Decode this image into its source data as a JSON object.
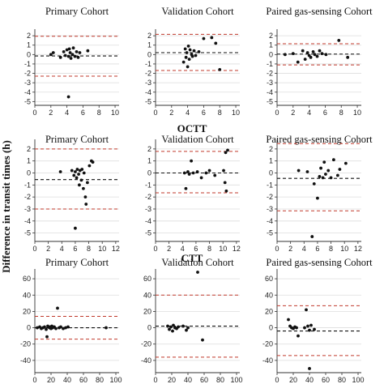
{
  "figure": {
    "ylabel": "Difference in transit times (h)",
    "section_titles": [
      "",
      "OCTT",
      "CTT"
    ]
  },
  "chart_data": [
    {
      "type": "scatter",
      "row": 0,
      "col": 0,
      "title": "Primary Cohort",
      "xlim": [
        0,
        10.5
      ],
      "xticks": [
        0,
        2,
        4,
        6,
        8,
        10
      ],
      "ylim": [
        -5.4,
        2.7
      ],
      "yticks": [
        -5,
        -4,
        -3,
        -2,
        -1,
        0,
        1,
        2
      ],
      "mean": -0.15,
      "loa_upper": 1.95,
      "loa_lower": -2.3,
      "grid": true,
      "points": [
        [
          2.0,
          0.0
        ],
        [
          2.3,
          0.2
        ],
        [
          3.2,
          -0.3
        ],
        [
          3.6,
          0.3
        ],
        [
          3.8,
          -0.1
        ],
        [
          4.0,
          0.5
        ],
        [
          4.2,
          -0.2
        ],
        [
          4.3,
          0.6
        ],
        [
          4.4,
          0.2
        ],
        [
          4.5,
          -0.4
        ],
        [
          4.7,
          0.0
        ],
        [
          4.8,
          0.7
        ],
        [
          5.0,
          -0.2
        ],
        [
          5.2,
          0.3
        ],
        [
          5.4,
          -0.3
        ],
        [
          5.6,
          0.2
        ],
        [
          6.6,
          0.4
        ],
        [
          4.2,
          -4.5
        ]
      ]
    },
    {
      "type": "scatter",
      "row": 0,
      "col": 1,
      "title": "Validation Cohort",
      "xlim": [
        0,
        10.5
      ],
      "xticks": [
        0,
        2,
        4,
        6,
        8,
        10
      ],
      "ylim": [
        -5.4,
        2.7
      ],
      "yticks": [
        -5,
        -4,
        -3,
        -2,
        -1,
        0,
        1,
        2
      ],
      "mean": 0.2,
      "loa_upper": 2.15,
      "loa_lower": -1.7,
      "grid": true,
      "points": [
        [
          3.5,
          -0.8
        ],
        [
          3.7,
          0.6
        ],
        [
          3.8,
          -0.3
        ],
        [
          3.9,
          0.2
        ],
        [
          4.0,
          -1.3
        ],
        [
          4.1,
          0.9
        ],
        [
          4.2,
          -0.5
        ],
        [
          4.3,
          0.5
        ],
        [
          4.5,
          0.0
        ],
        [
          4.6,
          -0.2
        ],
        [
          4.8,
          0.4
        ],
        [
          5.0,
          -0.1
        ],
        [
          5.4,
          0.3
        ],
        [
          6.0,
          1.7
        ],
        [
          7.0,
          1.8
        ],
        [
          7.5,
          1.2
        ],
        [
          8.0,
          -1.6
        ]
      ]
    },
    {
      "type": "scatter",
      "row": 0,
      "col": 2,
      "title": "Paired gas-sensing Cohort",
      "xlim": [
        0,
        10.5
      ],
      "xticks": [
        0,
        2,
        4,
        6,
        8,
        10
      ],
      "ylim": [
        -5.4,
        2.7
      ],
      "yticks": [
        -5,
        -4,
        -3,
        -2,
        -1,
        0,
        1,
        2
      ],
      "mean": 0.05,
      "loa_upper": 1.15,
      "loa_lower": -1.1,
      "grid": true,
      "points": [
        [
          1.0,
          0.0
        ],
        [
          2.0,
          0.1
        ],
        [
          2.6,
          -0.8
        ],
        [
          3.2,
          0.4
        ],
        [
          3.5,
          -0.5
        ],
        [
          3.8,
          0.2
        ],
        [
          4.0,
          -0.1
        ],
        [
          4.2,
          -0.3
        ],
        [
          4.5,
          0.3
        ],
        [
          4.7,
          0.0
        ],
        [
          5.0,
          -0.2
        ],
        [
          5.3,
          0.4
        ],
        [
          5.6,
          0.1
        ],
        [
          6.1,
          0.0
        ],
        [
          7.7,
          1.5
        ],
        [
          8.8,
          -0.3
        ]
      ]
    },
    {
      "type": "scatter",
      "row": 1,
      "col": 0,
      "title": "Primary Cohort",
      "xlim": [
        0,
        12.5
      ],
      "xticks": [
        0,
        2,
        4,
        6,
        8,
        10,
        12
      ],
      "ylim": [
        -5.7,
        2.8
      ],
      "yticks": [
        -5,
        -4,
        -3,
        -2,
        -1,
        0,
        1,
        2
      ],
      "mean": -0.55,
      "loa_upper": 2.0,
      "loa_lower": -3.0,
      "grid": true,
      "points": [
        [
          3.8,
          0.1
        ],
        [
          5.5,
          0.2
        ],
        [
          5.8,
          -0.2
        ],
        [
          6.0,
          0.1
        ],
        [
          6.2,
          -0.4
        ],
        [
          6.3,
          0.3
        ],
        [
          6.5,
          -0.1
        ],
        [
          6.6,
          -1.0
        ],
        [
          6.7,
          0.2
        ],
        [
          6.9,
          -0.6
        ],
        [
          7.0,
          0.3
        ],
        [
          7.2,
          -1.3
        ],
        [
          7.3,
          0.0
        ],
        [
          7.5,
          -2.0
        ],
        [
          7.8,
          -0.8
        ],
        [
          8.1,
          0.6
        ],
        [
          8.4,
          1.0
        ],
        [
          8.6,
          0.9
        ],
        [
          6.0,
          -4.6
        ],
        [
          7.6,
          -2.6
        ]
      ]
    },
    {
      "type": "scatter",
      "row": 1,
      "col": 1,
      "title": "Validation Cohort",
      "xlim": [
        0,
        12.5
      ],
      "xticks": [
        0,
        2,
        4,
        6,
        8,
        10,
        12
      ],
      "ylim": [
        -5.7,
        2.8
      ],
      "yticks": [
        -5,
        -4,
        -3,
        -2,
        -1,
        0,
        1,
        2
      ],
      "mean": 0.0,
      "loa_upper": 1.8,
      "loa_lower": -1.65,
      "grid": true,
      "points": [
        [
          4.3,
          0.0
        ],
        [
          4.5,
          -1.3
        ],
        [
          4.8,
          0.1
        ],
        [
          5.0,
          -0.1
        ],
        [
          5.3,
          1.0
        ],
        [
          5.6,
          0.0
        ],
        [
          6.2,
          0.1
        ],
        [
          6.8,
          -0.4
        ],
        [
          7.5,
          0.0
        ],
        [
          8.0,
          0.2
        ],
        [
          8.8,
          -0.2
        ],
        [
          10.1,
          0.2
        ],
        [
          10.3,
          -0.8
        ],
        [
          10.4,
          1.7
        ],
        [
          10.5,
          -1.5
        ],
        [
          10.7,
          1.9
        ]
      ]
    },
    {
      "type": "scatter",
      "row": 1,
      "col": 2,
      "title": "Paired gas-sensing Cohort",
      "xlim": [
        0,
        12.5
      ],
      "xticks": [
        0,
        2,
        4,
        6,
        8,
        10,
        12
      ],
      "ylim": [
        -5.7,
        2.8
      ],
      "yticks": [
        -5,
        -4,
        -3,
        -2,
        -1,
        0,
        1,
        2
      ],
      "mean": -0.45,
      "loa_upper": 2.45,
      "loa_lower": -3.15,
      "grid": true,
      "points": [
        [
          3.2,
          0.2
        ],
        [
          4.5,
          0.1
        ],
        [
          5.5,
          -0.9
        ],
        [
          6.0,
          -2.1
        ],
        [
          6.3,
          -0.3
        ],
        [
          6.5,
          0.4
        ],
        [
          6.8,
          -0.4
        ],
        [
          7.0,
          0.9
        ],
        [
          7.2,
          -0.1
        ],
        [
          7.6,
          0.2
        ],
        [
          8.0,
          -0.4
        ],
        [
          8.4,
          1.1
        ],
        [
          9.0,
          -0.2
        ],
        [
          9.3,
          0.3
        ],
        [
          10.2,
          0.8
        ],
        [
          5.2,
          -5.3
        ]
      ]
    },
    {
      "type": "scatter",
      "row": 2,
      "col": 0,
      "title": "Primary Cohort",
      "xlim": [
        0,
        104
      ],
      "xticks": [
        0,
        20,
        40,
        60,
        80,
        100
      ],
      "ylim": [
        -55,
        72
      ],
      "yticks": [
        -40,
        -20,
        0,
        20,
        40,
        60
      ],
      "mean": 0,
      "loa_upper": 14,
      "loa_lower": -14,
      "grid": true,
      "points": [
        [
          3,
          0
        ],
        [
          6,
          1
        ],
        [
          8,
          -1
        ],
        [
          10,
          0
        ],
        [
          12,
          1
        ],
        [
          14,
          -2
        ],
        [
          16,
          2
        ],
        [
          18,
          0
        ],
        [
          19,
          1
        ],
        [
          20,
          -1
        ],
        [
          21,
          2
        ],
        [
          22,
          0
        ],
        [
          24,
          1
        ],
        [
          26,
          -1
        ],
        [
          28,
          24
        ],
        [
          30,
          0
        ],
        [
          32,
          1
        ],
        [
          35,
          -1
        ],
        [
          38,
          0
        ],
        [
          41,
          1
        ],
        [
          88,
          0
        ],
        [
          15,
          -11
        ]
      ]
    },
    {
      "type": "scatter",
      "row": 2,
      "col": 1,
      "title": "Validation Cohort",
      "xlim": [
        0,
        104
      ],
      "xticks": [
        0,
        20,
        40,
        60,
        80,
        100
      ],
      "ylim": [
        -55,
        72
      ],
      "yticks": [
        -40,
        -20,
        0,
        20,
        40,
        60
      ],
      "mean": 2,
      "loa_upper": 40,
      "loa_lower": -36,
      "grid": true,
      "points": [
        [
          15,
          2
        ],
        [
          17,
          -2
        ],
        [
          19,
          1
        ],
        [
          21,
          -4
        ],
        [
          22,
          3
        ],
        [
          24,
          0
        ],
        [
          26,
          -1
        ],
        [
          28,
          1
        ],
        [
          34,
          2
        ],
        [
          38,
          -3
        ],
        [
          40,
          0
        ],
        [
          52,
          68
        ],
        [
          58,
          -15
        ]
      ]
    },
    {
      "type": "scatter",
      "row": 2,
      "col": 2,
      "title": "Paired gas-sensing Cohort",
      "xlim": [
        0,
        104
      ],
      "xticks": [
        0,
        20,
        40,
        60,
        80,
        100
      ],
      "ylim": [
        -55,
        72
      ],
      "yticks": [
        -40,
        -20,
        0,
        20,
        40,
        60
      ],
      "mean": -4,
      "loa_upper": 27,
      "loa_lower": -34,
      "grid": true,
      "points": [
        [
          14,
          10
        ],
        [
          16,
          2
        ],
        [
          18,
          0
        ],
        [
          20,
          -1
        ],
        [
          22,
          1
        ],
        [
          24,
          0
        ],
        [
          26,
          -10
        ],
        [
          34,
          0
        ],
        [
          36,
          22
        ],
        [
          38,
          2
        ],
        [
          40,
          -3
        ],
        [
          42,
          3
        ],
        [
          46,
          -2
        ],
        [
          40,
          -50
        ]
      ]
    }
  ]
}
